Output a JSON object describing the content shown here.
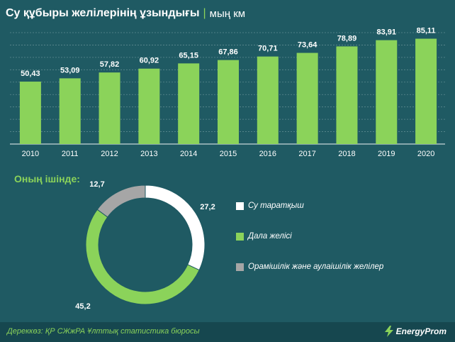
{
  "header": {
    "title": "Су құбыры желілерінің ұзындығы",
    "separator": "|",
    "unit": "мың км"
  },
  "chart_data": [
    {
      "type": "bar",
      "categories": [
        "2010",
        "2011",
        "2012",
        "2013",
        "2014",
        "2015",
        "2016",
        "2017",
        "2018",
        "2019",
        "2020"
      ],
      "values": [
        50.43,
        53.09,
        57.82,
        60.92,
        65.15,
        67.86,
        70.71,
        73.64,
        78.89,
        83.91,
        85.11
      ],
      "value_labels": [
        "50,43",
        "53,09",
        "57,82",
        "60,92",
        "65,15",
        "67,86",
        "70,71",
        "73,64",
        "78,89",
        "83,91",
        "85,11"
      ],
      "ylim": [
        0,
        90
      ],
      "grid": true,
      "bar_color": "#8bd35a"
    },
    {
      "type": "pie",
      "donut": true,
      "title": "Оның ішінде:",
      "slices": [
        {
          "label": "Су таратқыш",
          "value": 27.2,
          "value_label": "27,2",
          "color": "#ffffff"
        },
        {
          "label": "Дала желісі",
          "value": 45.2,
          "value_label": "45,2",
          "color": "#8bd35a"
        },
        {
          "label": "Орамішілік және аулаішілік желілер",
          "value": 12.7,
          "value_label": "12,7",
          "color": "#a6a6a6"
        }
      ],
      "legend_position": "right"
    }
  ],
  "footer": {
    "source": "Дереккөз: ҚР СЖжРА Ұлттық статистика бюросы",
    "logo_text": "EnergyProm",
    "logo_icon": "lightning-icon"
  },
  "colors": {
    "background": "#1f5a63",
    "accent": "#8bd35a",
    "footer_bg": "#16474f"
  }
}
